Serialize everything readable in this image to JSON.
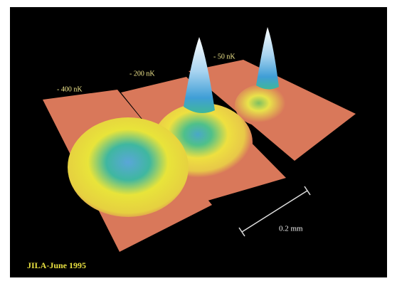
{
  "labels": {
    "temperatures": [
      "- 400 nK",
      "- 200 nK",
      "- 50 nK"
    ],
    "scale": "0.2 mm",
    "credit": "JILA-June 1995"
  }
}
